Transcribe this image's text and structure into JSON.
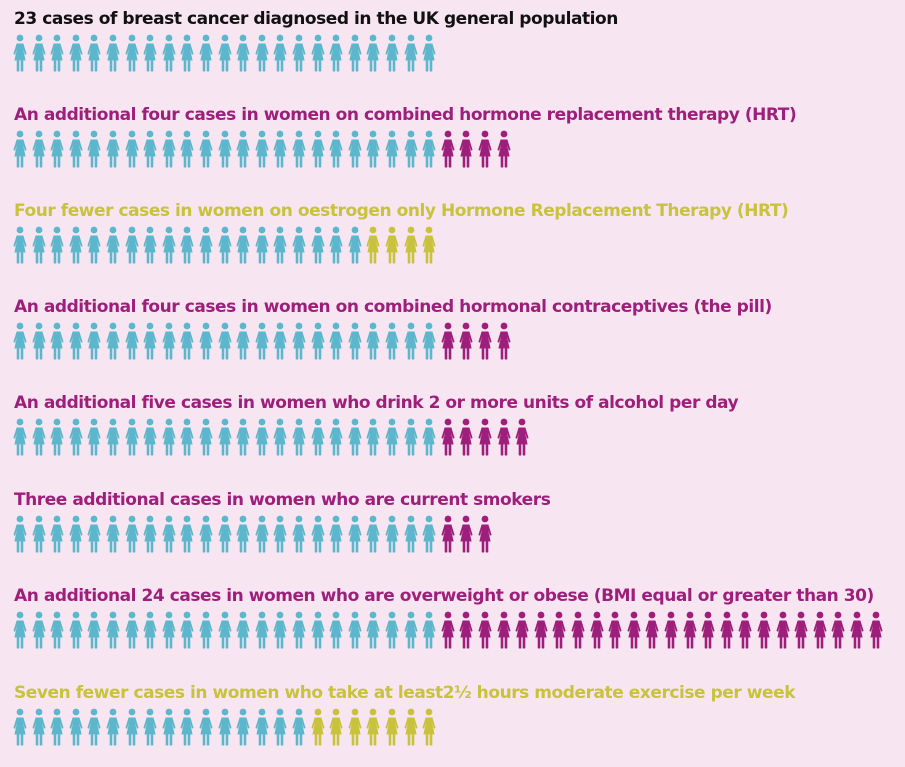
{
  "colors": {
    "background": "#f7e6f1",
    "baseline": "#5db7cc",
    "increase": "#9e1f7b",
    "decrease": "#c8c23c",
    "text_dark": "#111111"
  },
  "rows": [
    {
      "heading": "23 cases of breast cancer diagnosed in the UK general population",
      "tone": "dark",
      "base_count": 23,
      "change_count": 0,
      "change_type": "none",
      "figure_icon": "woman-figure-icon"
    },
    {
      "heading": "An additional four cases in women on combined hormone replacement therapy (HRT)",
      "tone": "increase",
      "base_count": 23,
      "change_count": 4,
      "change_type": "increase",
      "figure_icon": "woman-figure-icon"
    },
    {
      "heading": "Four fewer  cases in women on oestrogen only Hormone Replacement Therapy (HRT)",
      "tone": "decrease",
      "base_count": 19,
      "change_count": 4,
      "change_type": "decrease",
      "figure_icon": "woman-figure-icon"
    },
    {
      "heading": "An additional four cases in women on combined hormonal contraceptives (the pill)",
      "tone": "increase",
      "base_count": 23,
      "change_count": 4,
      "change_type": "increase",
      "figure_icon": "woman-figure-icon"
    },
    {
      "heading": "An additional five cases in women who drink 2 or more units of alcohol per day",
      "tone": "increase",
      "base_count": 23,
      "change_count": 5,
      "change_type": "increase",
      "figure_icon": "woman-figure-icon"
    },
    {
      "heading": "Three additional cases in women who are current smokers",
      "tone": "increase",
      "base_count": 23,
      "change_count": 3,
      "change_type": "increase",
      "figure_icon": "woman-figure-icon"
    },
    {
      "heading": "An additional 24 cases in women who are overweight or obese (BMI equal or greater than 30)",
      "tone": "increase",
      "base_count": 23,
      "change_count": 24,
      "change_type": "increase",
      "figure_icon": "woman-figure-icon"
    },
    {
      "heading": "Seven fewer cases in women who take at least2½ hours moderate exercise per week",
      "tone": "decrease",
      "base_count": 16,
      "change_count": 7,
      "change_type": "decrease",
      "figure_icon": "woman-figure-icon"
    }
  ]
}
